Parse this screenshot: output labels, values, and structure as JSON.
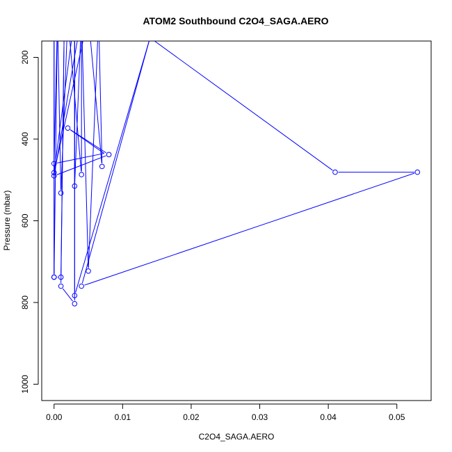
{
  "chart_data": {
    "type": "line",
    "title": "ATOM2 Southbound C2O4_SAGA.AERO",
    "xlabel": "C2O4_SAGA.AERO",
    "ylabel": "Pressure (mbar)",
    "xlim": [
      -0.0018,
      0.055
    ],
    "ylim": [
      1040,
      160
    ],
    "y_reversed": true,
    "x_ticks": [
      0.0,
      0.01,
      0.02,
      0.03,
      0.04,
      0.05
    ],
    "x_tick_labels": [
      "0.00",
      "0.01",
      "0.02",
      "0.03",
      "0.04",
      "0.05"
    ],
    "y_ticks": [
      200,
      400,
      600,
      800,
      1000
    ],
    "y_tick_labels": [
      "200",
      "400",
      "600",
      "800",
      "1000"
    ],
    "grid": false,
    "series": [
      {
        "color": "#0000ff",
        "marker": "open-circle",
        "points": [
          {
            "x": 0.0005,
            "y": 100,
            "marker": false
          },
          {
            "x": 0.0,
            "y": 460
          },
          {
            "x": 0.0073,
            "y": 435,
            "marker": false
          },
          {
            "x": 0.002,
            "y": 373
          },
          {
            "x": 0.008,
            "y": 438
          },
          {
            "x": 0.0,
            "y": 490
          },
          {
            "x": 0.004,
            "y": 100,
            "marker": false
          },
          {
            "x": 0.003,
            "y": 515
          },
          {
            "x": 0.003,
            "y": 100,
            "marker": false
          },
          {
            "x": 0.0,
            "y": 482
          },
          {
            "x": 0.005,
            "y": 100,
            "marker": false
          },
          {
            "x": 0.007,
            "y": 467
          },
          {
            "x": 0.0065,
            "y": 100,
            "marker": false
          },
          {
            "x": 0.005,
            "y": 723
          },
          {
            "x": 0.004,
            "y": 100,
            "marker": false
          },
          {
            "x": 0.004,
            "y": 487
          },
          {
            "x": 0.002,
            "y": 100,
            "marker": false
          },
          {
            "x": 0.001,
            "y": 532
          },
          {
            "x": 0.0005,
            "y": 100,
            "marker": false
          },
          {
            "x": 0.0,
            "y": 738
          },
          {
            "x": 0.0,
            "y": 100,
            "marker": false
          },
          {
            "x": 0.0,
            "y": 738
          },
          {
            "x": 0.001,
            "y": 738
          },
          {
            "x": 0.0015,
            "y": 100,
            "marker": false
          },
          {
            "x": 0.001,
            "y": 760
          },
          {
            "x": 0.003,
            "y": 803
          },
          {
            "x": 0.003,
            "y": 100,
            "marker": false
          },
          {
            "x": 0.003,
            "y": 783
          },
          {
            "x": 0.014,
            "y": 152,
            "marker": false
          },
          {
            "x": 0.041,
            "y": 481
          },
          {
            "x": 0.053,
            "y": 481
          },
          {
            "x": 0.004,
            "y": 760
          },
          {
            "x": 0.014,
            "y": 152,
            "marker": false
          },
          {
            "x": 0.005,
            "y": 100,
            "marker": false
          }
        ]
      }
    ]
  }
}
